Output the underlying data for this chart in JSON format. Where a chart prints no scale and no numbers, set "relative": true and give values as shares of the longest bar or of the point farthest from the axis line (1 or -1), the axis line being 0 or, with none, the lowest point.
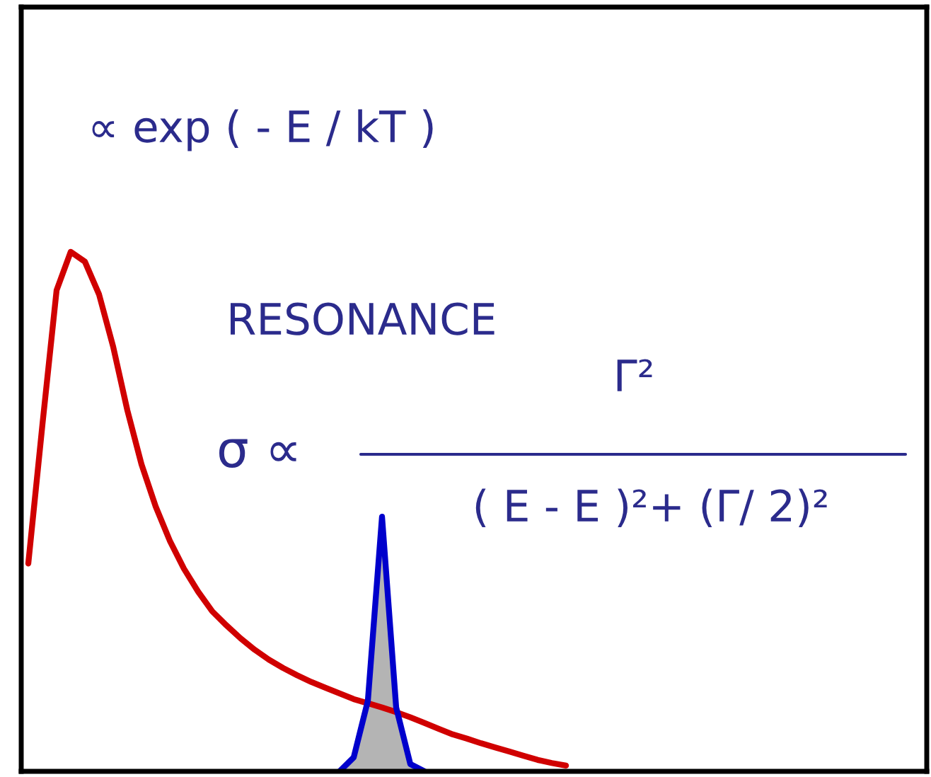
{
  "chart_data": {
    "type": "line",
    "relative": true,
    "grid": false,
    "legend": false,
    "categories": [
      null,
      null,
      null,
      null,
      null,
      null,
      null,
      null,
      null,
      null,
      null,
      null,
      null,
      null,
      null,
      null,
      null,
      null,
      null,
      null,
      null,
      null,
      null,
      null,
      null,
      null,
      null,
      null,
      null,
      null,
      null,
      null,
      null,
      null,
      null,
      null,
      null,
      null,
      null,
      null,
      null,
      null,
      null,
      null,
      null,
      null,
      null,
      null,
      null,
      null,
      null,
      null,
      null,
      null,
      null,
      null,
      null,
      null,
      null,
      null,
      null,
      null,
      null,
      null
    ],
    "series": [
      {
        "color": "#d00000",
        "values": [
          0.4,
          0.668,
          0.926,
          1,
          0.981,
          0.918,
          0.817,
          0.695,
          0.591,
          0.51,
          0.444,
          0.39,
          0.346,
          0.308,
          0.281,
          0.256,
          0.234,
          0.215,
          0.199,
          0.185,
          0.172,
          0.161,
          0.15,
          0.139,
          0.131,
          0.123,
          0.114,
          0.104,
          0.093,
          0.082,
          0.071,
          0.063,
          0.054,
          0.046,
          0.038,
          0.03,
          0.022,
          0.016,
          0.011,
          null,
          null,
          null,
          null,
          null,
          null,
          null,
          null,
          null,
          null,
          null,
          null,
          null,
          null,
          null,
          null,
          null,
          null,
          null,
          null,
          null,
          null,
          null,
          null,
          null
        ]
      },
      {
        "type": "area",
        "color": "#0000cc",
        "values": [
          null,
          null,
          null,
          null,
          null,
          null,
          null,
          null,
          null,
          null,
          null,
          null,
          null,
          null,
          null,
          null,
          null,
          null,
          null,
          null,
          null,
          null,
          0,
          0.027,
          0.136,
          0.49,
          0.123,
          0.014,
          0,
          null,
          null,
          null,
          null,
          null,
          null,
          null,
          null,
          null,
          null,
          null,
          null,
          null,
          null,
          null,
          null,
          null,
          null,
          null,
          null,
          null,
          null,
          null,
          null,
          null,
          null,
          null,
          null,
          null,
          null,
          null,
          null,
          null,
          null,
          null
        ]
      }
    ],
    "annotations": [
      "∝ exp ( - E / kT )",
      "RESONANCE",
      "σ ∝",
      "Γ²",
      "( E - E )²+ (Γ/ 2)²"
    ]
  }
}
